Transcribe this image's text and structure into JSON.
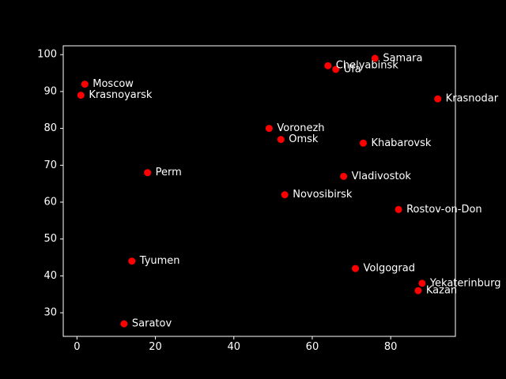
{
  "chart_data": {
    "type": "scatter",
    "title": "",
    "xlabel": "",
    "ylabel": "",
    "xlim": [
      -3.5,
      96.5
    ],
    "ylim": [
      23.6,
      102.4
    ],
    "xticks": [
      0,
      20,
      40,
      60,
      80
    ],
    "yticks": [
      30,
      40,
      50,
      60,
      70,
      80,
      90,
      100
    ],
    "grid": false,
    "colors": {
      "background": "#000000",
      "foreground": "#ffffff",
      "marker": "#ff0000"
    },
    "points": [
      {
        "label": "Samara",
        "x": 76,
        "y": 99
      },
      {
        "label": "Chelyabinsk",
        "x": 64,
        "y": 97
      },
      {
        "label": "Ufa",
        "x": 66,
        "y": 96
      },
      {
        "label": "Moscow",
        "x": 2,
        "y": 92
      },
      {
        "label": "Krasnoyarsk",
        "x": 1,
        "y": 89
      },
      {
        "label": "Krasnodar",
        "x": 92,
        "y": 88
      },
      {
        "label": "Voronezh",
        "x": 49,
        "y": 80
      },
      {
        "label": "Omsk",
        "x": 52,
        "y": 77
      },
      {
        "label": "Khabarovsk",
        "x": 73,
        "y": 76
      },
      {
        "label": "Perm",
        "x": 18,
        "y": 68
      },
      {
        "label": "Vladivostok",
        "x": 68,
        "y": 67
      },
      {
        "label": "Novosibirsk",
        "x": 53,
        "y": 62
      },
      {
        "label": "Rostov-on-Don",
        "x": 82,
        "y": 58
      },
      {
        "label": "Tyumen",
        "x": 14,
        "y": 44
      },
      {
        "label": "Volgograd",
        "x": 71,
        "y": 42
      },
      {
        "label": "Yekaterinburg",
        "x": 88,
        "y": 38
      },
      {
        "label": "Kazan",
        "x": 87,
        "y": 36
      },
      {
        "label": "Saratov",
        "x": 12,
        "y": 27
      }
    ]
  }
}
